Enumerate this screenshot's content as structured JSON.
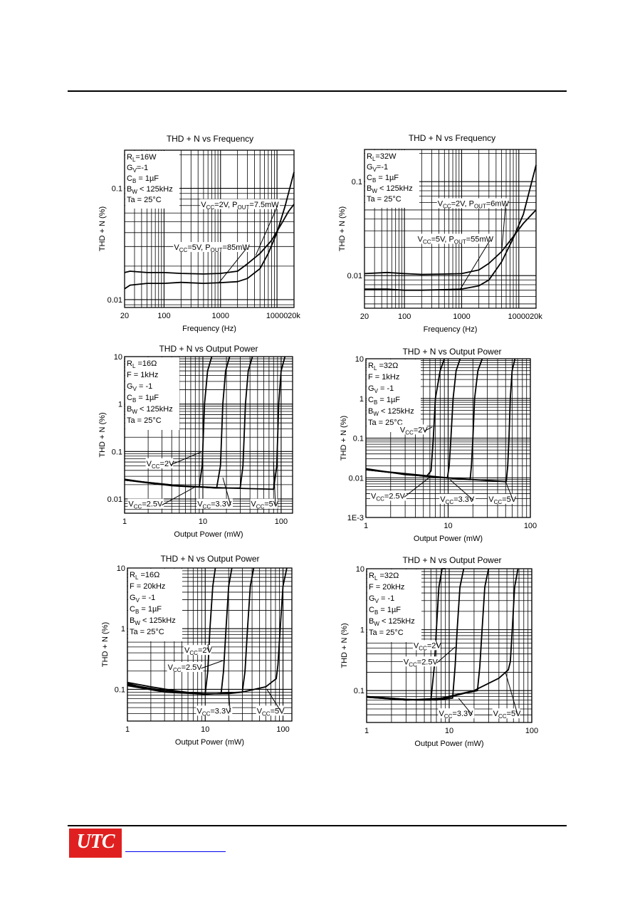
{
  "footer": {
    "logo_text": "UTC"
  },
  "chart_data": [
    {
      "id": "c1",
      "type": "line",
      "title": "THD + N vs Frequency",
      "xlabel": "Frequency (Hz)",
      "ylabel": "THD + N (%)",
      "xscale": "log",
      "yscale": "log",
      "xlim": [
        20,
        20000
      ],
      "ylim": [
        0.0085,
        0.22
      ],
      "xticks": [
        {
          "v": 20,
          "t": "20"
        },
        {
          "v": 100,
          "t": "100"
        },
        {
          "v": 1000,
          "t": "1000"
        },
        {
          "v": 10000,
          "t": "10000"
        },
        {
          "v": 20000,
          "t": "20k"
        }
      ],
      "yticks": [
        {
          "v": 0.01,
          "t": "0.01"
        },
        {
          "v": 0.1,
          "t": "0.1"
        }
      ],
      "conditions": [
        "R_L=16W",
        "G_V=-1",
        "C_B = 1µF",
        "B_W < 125kHz",
        "Ta = 25°C"
      ],
      "series": [
        {
          "name": "V_CC=2V, P_OUT=7.5mW",
          "x": [
            20,
            25,
            50,
            100,
            200,
            500,
            1000,
            2000,
            3000,
            5000,
            8000,
            12000,
            16000,
            20000
          ],
          "y": [
            0.0175,
            0.018,
            0.0175,
            0.0175,
            0.0172,
            0.017,
            0.0172,
            0.018,
            0.021,
            0.026,
            0.034,
            0.048,
            0.062,
            0.072
          ]
        },
        {
          "name": "V_CC=5V, P_OUT=85mW",
          "x": [
            20,
            25,
            50,
            100,
            200,
            500,
            1000,
            2000,
            3000,
            5000,
            7000,
            10000,
            14000,
            20000
          ],
          "y": [
            0.0125,
            0.0135,
            0.014,
            0.014,
            0.0143,
            0.014,
            0.0142,
            0.0145,
            0.0155,
            0.019,
            0.026,
            0.04,
            0.07,
            0.14
          ]
        }
      ],
      "annotations": [
        {
          "text": "V_CC=2V, P_OUT=7.5mW",
          "x": 450,
          "y": 0.068,
          "ax": 4200,
          "ay": 0.025
        },
        {
          "text": "V_CC=5V, P_OUT=85mW",
          "x": 150,
          "y": 0.028,
          "ax": 950,
          "ay": 0.0143
        }
      ]
    },
    {
      "id": "c2",
      "type": "line",
      "title": "THD + N vs Frequency",
      "xlabel": "Frequency (Hz)",
      "ylabel": "THD + N (%)",
      "xscale": "log",
      "yscale": "log",
      "xlim": [
        20,
        20000
      ],
      "ylim": [
        0.0045,
        0.22
      ],
      "xticks": [
        {
          "v": 20,
          "t": "20"
        },
        {
          "v": 100,
          "t": "100"
        },
        {
          "v": 1000,
          "t": "1000"
        },
        {
          "v": 10000,
          "t": "10000"
        },
        {
          "v": 20000,
          "t": "20k"
        }
      ],
      "yticks": [
        {
          "v": 0.01,
          "t": "0.01"
        },
        {
          "v": 0.1,
          "t": "0.1"
        }
      ],
      "conditions": [
        "R_L=32W",
        "G_V=-1",
        "C_B = 1µF",
        "B_W < 125kHz",
        "Ta = 25°C"
      ],
      "series": [
        {
          "name": "V_CC=2V, P_OUT=6mW",
          "x": [
            20,
            50,
            100,
            200,
            500,
            1000,
            2000,
            3000,
            5000,
            8000,
            12000,
            20000
          ],
          "y": [
            0.0105,
            0.0108,
            0.0105,
            0.0103,
            0.0104,
            0.0105,
            0.0115,
            0.0135,
            0.018,
            0.026,
            0.036,
            0.05
          ]
        },
        {
          "name": "V_CC=5V, P_OUT=55mW",
          "x": [
            20,
            50,
            100,
            200,
            500,
            1000,
            2000,
            3000,
            5000,
            8000,
            12000,
            20000
          ],
          "y": [
            0.0072,
            0.0072,
            0.007,
            0.007,
            0.0071,
            0.0072,
            0.0078,
            0.009,
            0.014,
            0.025,
            0.045,
            0.15
          ]
        }
      ],
      "annotations": [
        {
          "text": "V_CC=2V, P_OUT=6mW",
          "x": 380,
          "y": 0.055,
          "ax": 5000,
          "ay": 0.018
        },
        {
          "text": "V_CC=5V, P_OUT=55mW",
          "x": 170,
          "y": 0.023,
          "ax": 950,
          "ay": 0.0072
        }
      ]
    },
    {
      "id": "c3",
      "type": "line",
      "title": "THD + N vs Output Power",
      "xlabel": "Output Power (mW)",
      "ylabel": "THD + N (%)",
      "xscale": "log",
      "yscale": "log",
      "xlim": [
        1,
        140
      ],
      "ylim": [
        0.005,
        10
      ],
      "xticks": [
        {
          "v": 1,
          "t": "1"
        },
        {
          "v": 10,
          "t": "10"
        },
        {
          "v": 100,
          "t": "100"
        }
      ],
      "yticks": [
        {
          "v": 0.01,
          "t": "0.01"
        },
        {
          "v": 0.1,
          "t": "0.1"
        },
        {
          "v": 1,
          "t": "1"
        },
        {
          "v": 10,
          "t": "10"
        }
      ],
      "conditions": [
        "R_L =16Ω",
        "F = 1kHz",
        "G_V = -1",
        "C_B = 1µF",
        "B_W < 125kHz",
        "Ta = 25°C"
      ],
      "series": [
        {
          "name": "V_CC=2V",
          "x": [
            1,
            2,
            4,
            7,
            9,
            9.8,
            10.5,
            11.5,
            13
          ],
          "y": [
            0.026,
            0.022,
            0.019,
            0.018,
            0.018,
            0.05,
            1,
            5,
            10
          ]
        },
        {
          "name": "V_CC=2.5V",
          "x": [
            1,
            3,
            8,
            15,
            16.8,
            18,
            19.5,
            22
          ],
          "y": [
            0.025,
            0.02,
            0.018,
            0.017,
            0.05,
            1,
            5,
            10
          ]
        },
        {
          "name": "V_CC=3.3V",
          "x": [
            1,
            5,
            15,
            30,
            32.5,
            35,
            38,
            43
          ],
          "y": [
            0.025,
            0.019,
            0.017,
            0.017,
            0.05,
            1,
            5,
            10
          ]
        },
        {
          "name": "V_CC=5V",
          "x": [
            1,
            5,
            20,
            80,
            88,
            93,
            100,
            112
          ],
          "y": [
            0.025,
            0.019,
            0.017,
            0.016,
            0.05,
            1,
            5,
            10
          ]
        }
      ],
      "annotations": [
        {
          "text": "V_CC=2V",
          "x": 1.9,
          "y": 0.049,
          "ax": 9.8,
          "ay": 0.1
        },
        {
          "text": "V_CC=2.5V",
          "x": 1.12,
          "y": 0.0069,
          "ax": 8,
          "ay": 0.018
        },
        {
          "text": "V_CC=3.3V",
          "x": 8.5,
          "y": 0.0069,
          "ax": 18,
          "ay": 0.028
        },
        {
          "text": "V_CC=5V",
          "x": 41,
          "y": 0.0069,
          "ax": 80,
          "ay": 0.06
        }
      ]
    },
    {
      "id": "c4",
      "type": "line",
      "title": "THD + N vs Output Power",
      "xlabel": "Output Power (mW)",
      "ylabel": "THD + N (%)",
      "xscale": "log",
      "yscale": "log",
      "xlim": [
        1,
        100
      ],
      "ylim": [
        0.001,
        10
      ],
      "xticks": [
        {
          "v": 1,
          "t": "1"
        },
        {
          "v": 10,
          "t": "10"
        },
        {
          "v": 100,
          "t": "100"
        }
      ],
      "yticks": [
        {
          "v": 0.001,
          "t": "1E-3"
        },
        {
          "v": 0.01,
          "t": "0.01"
        },
        {
          "v": 0.1,
          "t": "0.1"
        },
        {
          "v": 1,
          "t": "1"
        },
        {
          "v": 10,
          "t": "10"
        }
      ],
      "conditions": [
        "R_L =32Ω",
        "F = 1kHz",
        "G_V = -1",
        "C_B = 1µF",
        "B_W < 125kHz",
        "Ta = 25°C"
      ],
      "series": [
        {
          "name": "V_CC=2V",
          "x": [
            1,
            3,
            5.5,
            6.2,
            6.6,
            7,
            8,
            9
          ],
          "y": [
            0.017,
            0.012,
            0.011,
            0.015,
            0.1,
            1,
            5,
            10
          ]
        },
        {
          "name": "V_CC=2.5V",
          "x": [
            1,
            4,
            9.8,
            10.3,
            10.8,
            11.5,
            12.5,
            14
          ],
          "y": [
            0.016,
            0.012,
            0.01,
            0.02,
            0.1,
            1,
            5,
            10
          ]
        },
        {
          "name": "V_CC=3.3V",
          "x": [
            1,
            5,
            18.5,
            19.2,
            20,
            21,
            23,
            26
          ],
          "y": [
            0.016,
            0.011,
            0.009,
            0.02,
            0.1,
            1,
            5,
            10
          ]
        },
        {
          "name": "V_CC=5V",
          "x": [
            1,
            5,
            20,
            51,
            53,
            55,
            57,
            60,
            65
          ],
          "y": [
            0.016,
            0.011,
            0.009,
            0.008,
            0.02,
            0.1,
            1,
            5,
            10
          ]
        }
      ],
      "annotations": [
        {
          "text": "V_CC=2V",
          "x": 2.6,
          "y": 0.14,
          "ax": 6.4,
          "ay": 0.19
        },
        {
          "text": "V_CC=2.5V",
          "x": 1.15,
          "y": 0.003,
          "ax": 6.2,
          "ay": 0.011
        },
        {
          "text": "V_CC=3.3V",
          "x": 8,
          "y": 0.0025,
          "ax": 10.5,
          "ay": 0.009
        },
        {
          "text": "V_CC=5V",
          "x": 31,
          "y": 0.0025,
          "ax": 50,
          "ay": 0.008
        }
      ]
    },
    {
      "id": "c5",
      "type": "line",
      "title": "THD + N vs Output Power",
      "xlabel": "Output Power (mW)",
      "ylabel": "THD + N (%)",
      "xscale": "log",
      "yscale": "log",
      "xlim": [
        1,
        130
      ],
      "ylim": [
        0.03,
        10
      ],
      "xticks": [
        {
          "v": 1,
          "t": "1"
        },
        {
          "v": 10,
          "t": "10"
        },
        {
          "v": 100,
          "t": "100"
        }
      ],
      "yticks": [
        {
          "v": 0.1,
          "t": "0.1"
        },
        {
          "v": 1,
          "t": "1"
        },
        {
          "v": 10,
          "t": "10"
        }
      ],
      "conditions": [
        "R_L =16Ω",
        "F = 20kHz",
        "G_V = -1",
        "C_B = 1µF",
        "B_W < 125kHz",
        "Ta = 25°C"
      ],
      "series": [
        {
          "name": "V_CC=2V",
          "x": [
            1,
            2,
            4,
            8,
            10,
            10.8,
            11.5,
            12.5,
            13.5
          ],
          "y": [
            0.13,
            0.11,
            0.095,
            0.085,
            0.085,
            0.2,
            1,
            5,
            10
          ]
        },
        {
          "name": "V_CC=2.5V",
          "x": [
            1,
            2,
            5,
            10,
            16,
            17.2,
            18.5,
            20,
            22
          ],
          "y": [
            0.125,
            0.1,
            0.09,
            0.085,
            0.085,
            0.2,
            1,
            5,
            10
          ]
        },
        {
          "name": "V_CC=3.3V",
          "x": [
            1,
            3,
            8,
            20,
            30,
            32.5,
            35,
            38,
            42
          ],
          "y": [
            0.12,
            0.095,
            0.085,
            0.085,
            0.09,
            0.2,
            1,
            5,
            10
          ]
        },
        {
          "name": "V_CC=5V",
          "x": [
            1,
            3,
            10,
            30,
            60,
            82,
            86,
            92,
            100,
            112
          ],
          "y": [
            0.115,
            0.09,
            0.083,
            0.09,
            0.11,
            0.15,
            0.25,
            1,
            5,
            10
          ]
        }
      ],
      "annotations": [
        {
          "text": "V_CC=2V",
          "x": 5.4,
          "y": 0.4,
          "ax": 10.8,
          "ay": 0.55
        },
        {
          "text": "V_CC=2.5V",
          "x": 3.3,
          "y": 0.21,
          "ax": 17.2,
          "ay": 0.3
        },
        {
          "text": "V_CC=3.3V",
          "x": 7.8,
          "y": 0.04,
          "ax": 20,
          "ay": 0.1
        },
        {
          "text": "V_CC=5V",
          "x": 46,
          "y": 0.04,
          "ax": 62,
          "ay": 0.1
        }
      ]
    },
    {
      "id": "c6",
      "type": "line",
      "title": "THD + N vs Output Power",
      "xlabel": "Output Power (mW)",
      "ylabel": "THD + N (%)",
      "xscale": "log",
      "yscale": "log",
      "xlim": [
        1,
        100
      ],
      "ylim": [
        0.03,
        10
      ],
      "xticks": [
        {
          "v": 1,
          "t": "1"
        },
        {
          "v": 10,
          "t": "10"
        },
        {
          "v": 100,
          "t": "100"
        }
      ],
      "yticks": [
        {
          "v": 0.1,
          "t": "0.1"
        },
        {
          "v": 1,
          "t": "1"
        },
        {
          "v": 10,
          "t": "10"
        }
      ],
      "conditions": [
        "R_L =32Ω",
        "F = 20kHz",
        "G_V = -1",
        "C_B = 1µF",
        "B_W < 125kHz",
        "Ta = 25°C"
      ],
      "series": [
        {
          "name": "V_CC=2V",
          "x": [
            1,
            2,
            4,
            6,
            6.6,
            7,
            7.5,
            8.2,
            9
          ],
          "y": [
            0.08,
            0.075,
            0.07,
            0.07,
            0.25,
            1,
            5,
            10,
            10
          ]
        },
        {
          "name": "V_CC=2.5V",
          "x": [
            1,
            3,
            7,
            11,
            11.8,
            12.5,
            13.5,
            15
          ],
          "y": [
            0.08,
            0.072,
            0.07,
            0.075,
            0.25,
            1,
            5,
            10
          ]
        },
        {
          "name": "V_CC=3.3V",
          "x": [
            1,
            3,
            8,
            15,
            22,
            23.5,
            25,
            27,
            30
          ],
          "y": [
            0.078,
            0.07,
            0.072,
            0.09,
            0.1,
            0.25,
            1,
            5,
            10
          ]
        },
        {
          "name": "V_CC=5V",
          "x": [
            1,
            3,
            8,
            20,
            40,
            52,
            55,
            58,
            62,
            68
          ],
          "y": [
            0.078,
            0.07,
            0.075,
            0.1,
            0.16,
            0.22,
            0.3,
            1,
            5,
            10
          ]
        }
      ],
      "annotations": [
        {
          "text": "V_CC=2V",
          "x": 3.7,
          "y": 0.5,
          "ax": 6.8,
          "ay": 0.7
        },
        {
          "text": "V_CC=2.5V",
          "x": 2.8,
          "y": 0.27,
          "ax": 11.8,
          "ay": 0.52
        },
        {
          "text": "V_CC=3.3V",
          "x": 7.5,
          "y": 0.038,
          "ax": 13,
          "ay": 0.075
        },
        {
          "text": "V_CC=5V",
          "x": 34,
          "y": 0.038,
          "ax": 48,
          "ay": 0.2
        }
      ]
    }
  ]
}
